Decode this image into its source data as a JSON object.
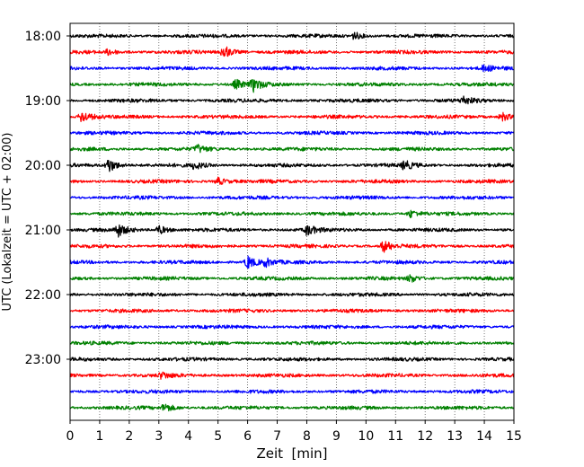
{
  "chart_data": {
    "type": "line",
    "title": "",
    "xlabel": "Zeit  [min]",
    "ylabel": "UTC (Lokalzeit = UTC + 02:00)",
    "xlim": [
      0,
      15
    ],
    "x_ticks": [
      "0",
      "1",
      "2",
      "3",
      "4",
      "5",
      "6",
      "7",
      "8",
      "9",
      "10",
      "11",
      "12",
      "13",
      "14",
      "15"
    ],
    "y_ticks": [
      "18:00",
      "19:00",
      "20:00",
      "21:00",
      "22:00",
      "23:00"
    ],
    "grid": "vertical-dotted",
    "row_interval_min": 15,
    "rows": [
      {
        "start": "18:00",
        "color": "#000000"
      },
      {
        "start": "18:15",
        "color": "#ff0000"
      },
      {
        "start": "18:30",
        "color": "#0000ff"
      },
      {
        "start": "18:45",
        "color": "#008000"
      },
      {
        "start": "19:00",
        "color": "#000000"
      },
      {
        "start": "19:15",
        "color": "#ff0000"
      },
      {
        "start": "19:30",
        "color": "#0000ff"
      },
      {
        "start": "19:45",
        "color": "#008000"
      },
      {
        "start": "20:00",
        "color": "#000000"
      },
      {
        "start": "20:15",
        "color": "#ff0000"
      },
      {
        "start": "20:30",
        "color": "#0000ff"
      },
      {
        "start": "20:45",
        "color": "#008000"
      },
      {
        "start": "21:00",
        "color": "#000000"
      },
      {
        "start": "21:15",
        "color": "#ff0000"
      },
      {
        "start": "21:30",
        "color": "#0000ff"
      },
      {
        "start": "21:45",
        "color": "#008000"
      },
      {
        "start": "22:00",
        "color": "#000000"
      },
      {
        "start": "22:15",
        "color": "#ff0000"
      },
      {
        "start": "22:30",
        "color": "#0000ff"
      },
      {
        "start": "22:45",
        "color": "#008000"
      },
      {
        "start": "23:00",
        "color": "#000000"
      },
      {
        "start": "23:15",
        "color": "#ff0000"
      },
      {
        "start": "23:30",
        "color": "#0000ff"
      },
      {
        "start": "23:45",
        "color": "#008000"
      }
    ],
    "events": [
      {
        "row": 0,
        "t": 9.6,
        "amp": 0.5
      },
      {
        "row": 1,
        "t": 5.2,
        "amp": 0.9
      },
      {
        "row": 1,
        "t": 1.3,
        "amp": 0.4
      },
      {
        "row": 2,
        "t": 14.0,
        "amp": 0.4
      },
      {
        "row": 3,
        "t": 6.2,
        "amp": 0.8
      },
      {
        "row": 3,
        "t": 5.6,
        "amp": 0.6
      },
      {
        "row": 4,
        "t": 13.3,
        "amp": 0.5
      },
      {
        "row": 5,
        "t": 0.4,
        "amp": 0.8
      },
      {
        "row": 5,
        "t": 14.6,
        "amp": 0.6
      },
      {
        "row": 7,
        "t": 4.3,
        "amp": 0.5
      },
      {
        "row": 8,
        "t": 1.3,
        "amp": 1.0
      },
      {
        "row": 8,
        "t": 11.3,
        "amp": 0.6
      },
      {
        "row": 8,
        "t": 4.2,
        "amp": 0.5
      },
      {
        "row": 9,
        "t": 5.0,
        "amp": 0.5
      },
      {
        "row": 11,
        "t": 11.5,
        "amp": 0.5
      },
      {
        "row": 12,
        "t": 1.6,
        "amp": 0.9
      },
      {
        "row": 12,
        "t": 8.0,
        "amp": 0.7
      },
      {
        "row": 12,
        "t": 3.0,
        "amp": 0.6
      },
      {
        "row": 13,
        "t": 10.6,
        "amp": 0.8
      },
      {
        "row": 14,
        "t": 6.0,
        "amp": 0.9
      },
      {
        "row": 14,
        "t": 6.6,
        "amp": 0.5
      },
      {
        "row": 15,
        "t": 11.5,
        "amp": 0.5
      },
      {
        "row": 21,
        "t": 3.1,
        "amp": 0.4
      },
      {
        "row": 23,
        "t": 3.2,
        "amp": 0.6
      }
    ]
  }
}
